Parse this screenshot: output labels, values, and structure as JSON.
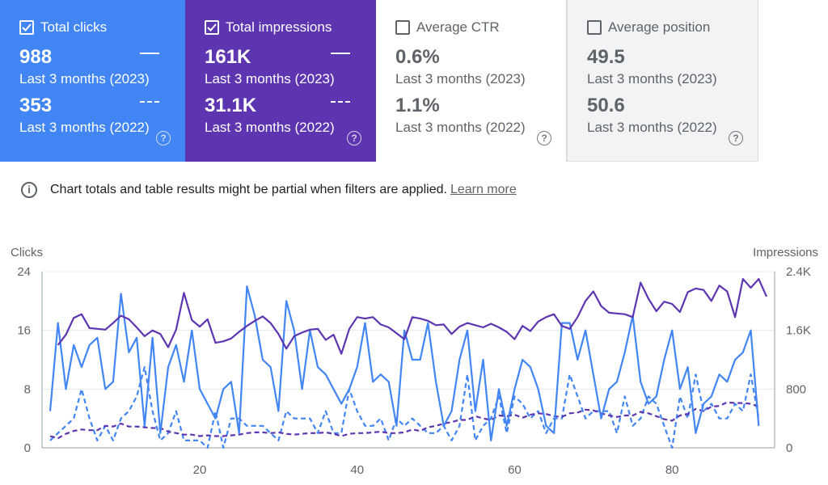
{
  "cards": [
    {
      "title": "Total clicks",
      "checked": true,
      "value_current": "988",
      "period_current": "Last 3 months (2023)",
      "value_previous": "353",
      "period_previous": "Last 3 months (2022)"
    },
    {
      "title": "Total impressions",
      "checked": true,
      "value_current": "161K",
      "period_current": "Last 3 months (2023)",
      "value_previous": "31.1K",
      "period_previous": "Last 3 months (2022)"
    },
    {
      "title": "Average CTR",
      "checked": false,
      "value_current": "0.6%",
      "period_current": "Last 3 months (2023)",
      "value_previous": "1.1%",
      "period_previous": "Last 3 months (2022)"
    },
    {
      "title": "Average position",
      "checked": false,
      "value_current": "49.5",
      "period_current": "Last 3 months (2023)",
      "value_previous": "50.6",
      "period_previous": "Last 3 months (2022)"
    }
  ],
  "notice": {
    "text": "Chart totals and table results might be partial when filters are applied.",
    "link": "Learn more"
  },
  "colors": {
    "clicks": "#4285f4",
    "impressions": "#5e35b1"
  },
  "chart_data": {
    "type": "line",
    "left_axis": {
      "label": "Clicks",
      "ticks": [
        0,
        8,
        16,
        24
      ],
      "range": [
        0,
        24
      ]
    },
    "right_axis": {
      "label": "Impressions",
      "ticks": [
        "0",
        "800",
        "1.6K",
        "2.4K"
      ],
      "range": [
        0,
        2400
      ]
    },
    "x_ticks": [
      20,
      40,
      60,
      80
    ],
    "x_range": [
      1,
      92
    ],
    "series": [
      {
        "name": "Clicks (2023)",
        "axis": "left",
        "style": "solid",
        "color": "#4285f4",
        "values": [
          5,
          17,
          8,
          14,
          11,
          14,
          15,
          8,
          9,
          21,
          13,
          15,
          3,
          15,
          2,
          11,
          14,
          9,
          16,
          8,
          6,
          4,
          8,
          9,
          2,
          22,
          18,
          12,
          11,
          5,
          20,
          16,
          8,
          16,
          11,
          10,
          8,
          6,
          8,
          11,
          17,
          9,
          10,
          9,
          3,
          16,
          12,
          12,
          17,
          9,
          3,
          5,
          12,
          16,
          5,
          12,
          1,
          8,
          3,
          8,
          12,
          11,
          8,
          3,
          2,
          17,
          17,
          12,
          16,
          10,
          4,
          8,
          9,
          13,
          18,
          9,
          6,
          7,
          12,
          16,
          8,
          11,
          2,
          6,
          7,
          10,
          9,
          12,
          13,
          16,
          3
        ],
        "x_start": 1
      },
      {
        "name": "Clicks (2022)",
        "axis": "left",
        "style": "dashed",
        "color": "#4285f4",
        "values": [
          1,
          2,
          3,
          4,
          8,
          4,
          1,
          3,
          1,
          4,
          5,
          7,
          11,
          5,
          1,
          2,
          5,
          1,
          1,
          1,
          0,
          5,
          0,
          4,
          4,
          3,
          3,
          3,
          2,
          1,
          5,
          4,
          4,
          4,
          2,
          5,
          2,
          2,
          8,
          5,
          3,
          3,
          4,
          1,
          4,
          3,
          4,
          3,
          2,
          2,
          3,
          1,
          3,
          10,
          1,
          3,
          4,
          7,
          2,
          7,
          6,
          4,
          5,
          2,
          4,
          4,
          10,
          7,
          4,
          5,
          5,
          5,
          2,
          7,
          3,
          4,
          7,
          6,
          3,
          0,
          7,
          4,
          10,
          5,
          6,
          4,
          4,
          6,
          5,
          10,
          4
        ],
        "x_start": 1
      },
      {
        "name": "Impressions (2023)",
        "axis": "right",
        "style": "solid",
        "color": "#5e35b1",
        "values": [
          1400,
          1540,
          1770,
          1820,
          1630,
          1620,
          1610,
          1700,
          1800,
          1750,
          1640,
          1520,
          1600,
          1550,
          1370,
          1610,
          2110,
          1740,
          1650,
          1750,
          1430,
          1450,
          1490,
          1580,
          1660,
          1730,
          1790,
          1700,
          1550,
          1350,
          1520,
          1570,
          1610,
          1620,
          1470,
          1540,
          1280,
          1620,
          1780,
          1760,
          1780,
          1680,
          1640,
          1560,
          1480,
          1780,
          1760,
          1730,
          1670,
          1680,
          1550,
          1650,
          1700,
          1670,
          1640,
          1690,
          1640,
          1580,
          1480,
          1660,
          1590,
          1720,
          1780,
          1820,
          1660,
          1620,
          1780,
          2000,
          2130,
          1930,
          1840,
          1830,
          1820,
          1780,
          2250,
          2030,
          1860,
          1990,
          1960,
          1850,
          2120,
          2170,
          2150,
          2000,
          2210,
          2130,
          1780,
          2300,
          2180,
          2300,
          2060
        ],
        "x_start": 2
      },
      {
        "name": "Impressions (2022)",
        "axis": "right",
        "style": "dashed",
        "color": "#5e35b1",
        "values": [
          160,
          130,
          190,
          230,
          250,
          240,
          240,
          300,
          290,
          330,
          290,
          290,
          280,
          270,
          270,
          220,
          200,
          180,
          180,
          160,
          170,
          160,
          160,
          170,
          180,
          200,
          210,
          210,
          200,
          210,
          190,
          180,
          190,
          200,
          200,
          210,
          190,
          160,
          190,
          200,
          200,
          210,
          220,
          200,
          200,
          210,
          250,
          230,
          280,
          300,
          330,
          350,
          380,
          380,
          430,
          400,
          380,
          440,
          430,
          450,
          410,
          450,
          470,
          460,
          430,
          420,
          470,
          480,
          520,
          510,
          470,
          440,
          420,
          440,
          440,
          490,
          470,
          430,
          390,
          370,
          440,
          460,
          530,
          500,
          560,
          570,
          620,
          610,
          610,
          600,
          560
        ],
        "x_start": 1
      }
    ]
  }
}
